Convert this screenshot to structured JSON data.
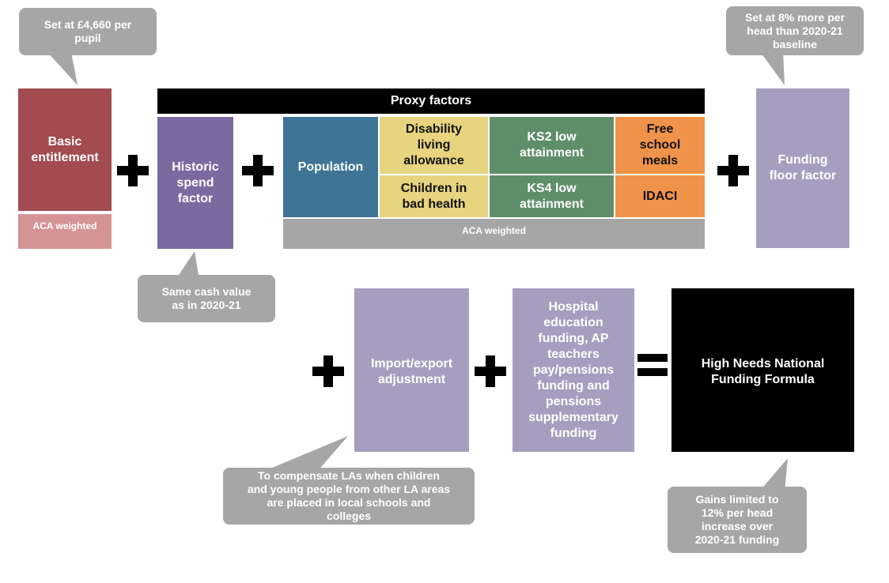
{
  "colors": {
    "basic": "#a24b50",
    "aca_small": "#d49395",
    "historic": "#7b6aa0",
    "population": "#3e7597",
    "yellow": "#e6d47e",
    "green": "#5f8f6a",
    "orange": "#f0934a",
    "grey_bar": "#a6a6a6",
    "lavender": "#a69ebf",
    "black": "#000000",
    "callout": "#a6a6a6"
  },
  "callouts": {
    "basic": "Set at £4,660 per\npupil",
    "floor": "Set at 8% more per\nhead than 2020-21\nbaseline",
    "historic": "Same cash value\nas in 2020-21",
    "import": "To compensate LAs when children\nand young people from other LA areas\nare placed in local schools and\ncolleges",
    "hnnff": "Gains limited to\n12% per head\nincrease over\n2020-21 funding"
  },
  "boxes": {
    "basic_entitlement": "Basic\nentitlement",
    "basic_aca": "ACA weighted",
    "historic_spend": "Historic\nspend\nfactor",
    "proxy_header": "Proxy factors",
    "population": "Population",
    "disability": "Disability\nliving\nallowance",
    "children_health": "Children in\nbad health",
    "ks2": "KS2 low\nattainment",
    "ks4": "KS4 low\nattainment",
    "free_meals": "Free\nschool\nmeals",
    "idaci": "IDACI",
    "proxy_aca": "ACA weighted",
    "funding_floor": "Funding\nfloor factor",
    "import_export": "Import/export\nadjustment",
    "hospital": "Hospital\neducation\nfunding, AP\nteachers\npay/pensions\nfunding and\npensions\nsupplementary\nfunding",
    "hnnff": "High Needs National\nFunding Formula"
  },
  "operators": {
    "plus_icon": "plus-icon",
    "equals_icon": "equals-icon"
  }
}
